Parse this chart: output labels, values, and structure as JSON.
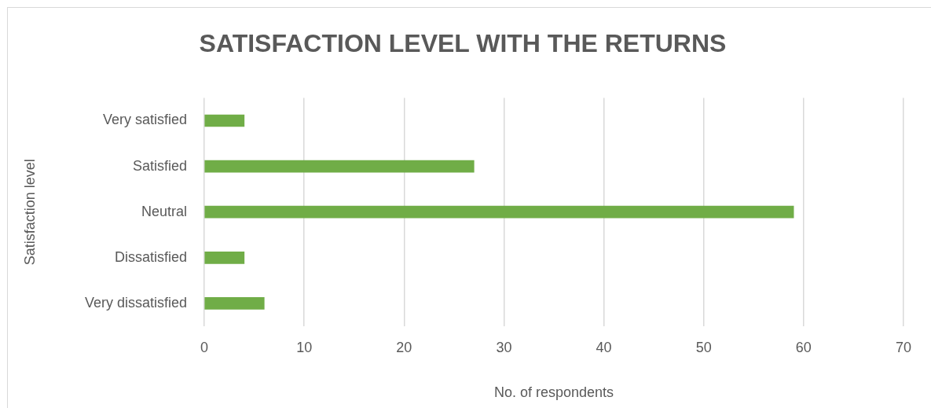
{
  "chart_data": {
    "type": "bar",
    "orientation": "horizontal",
    "title": "SATISFACTION LEVEL WITH THE RETURNS",
    "xlabel": "No. of respondents",
    "ylabel": "Satisfaction level",
    "categories": [
      "Very satisfied",
      "Satisfied",
      "Neutral",
      "Dissatisfied",
      "Very dissatisfied"
    ],
    "values": [
      4,
      27,
      59,
      4,
      6
    ],
    "color": "#70ad47",
    "xlim": [
      0,
      70
    ],
    "xticks": [
      0,
      10,
      20,
      30,
      40,
      50,
      60,
      70
    ],
    "grid": "x"
  }
}
